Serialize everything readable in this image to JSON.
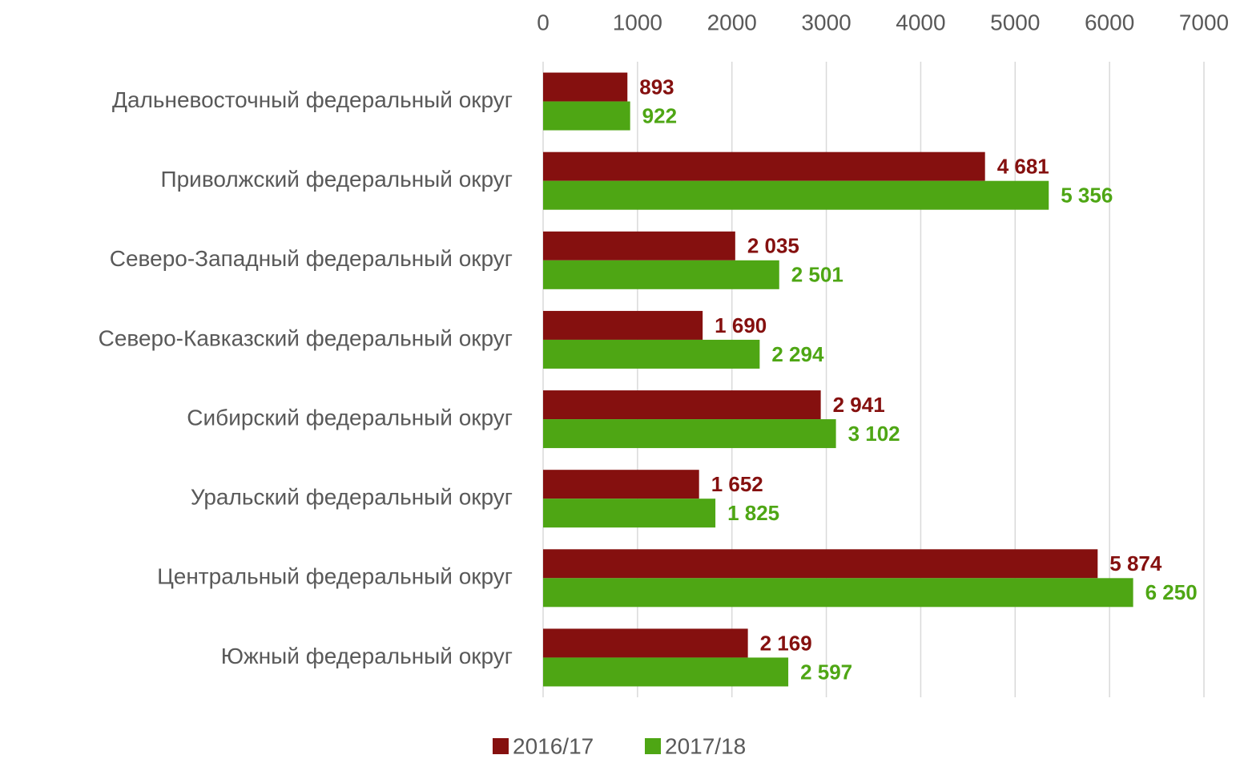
{
  "chart_data": {
    "type": "bar",
    "orientation": "horizontal",
    "categories": [
      "Дальневосточный федеральный округ",
      "Приволжский федеральный округ",
      "Северо-Западный федеральный округ",
      "Северо-Кавказский федеральный округ",
      "Сибирский федеральный округ",
      "Уральский федеральный округ",
      "Центральный федеральный округ",
      "Южный федеральный округ"
    ],
    "series": [
      {
        "name": "2016/17",
        "color": "#85100f",
        "values": [
          893,
          4681,
          2035,
          1690,
          2941,
          1652,
          5874,
          2169
        ],
        "value_labels": [
          "893",
          "4 681",
          "2 035",
          "1 690",
          "2 941",
          "1 652",
          "5 874",
          "2 169"
        ]
      },
      {
        "name": "2017/18",
        "color": "#4ea614",
        "values": [
          922,
          5356,
          2501,
          2294,
          3102,
          1825,
          6250,
          2597
        ],
        "value_labels": [
          "922",
          "5 356",
          "2 501",
          "2 294",
          "3 102",
          "1 825",
          "6 250",
          "2 597"
        ]
      }
    ],
    "xlim": [
      0,
      7000
    ],
    "xticks": [
      0,
      1000,
      2000,
      3000,
      4000,
      5000,
      6000,
      7000
    ],
    "grid": true,
    "legend": "bottom"
  }
}
